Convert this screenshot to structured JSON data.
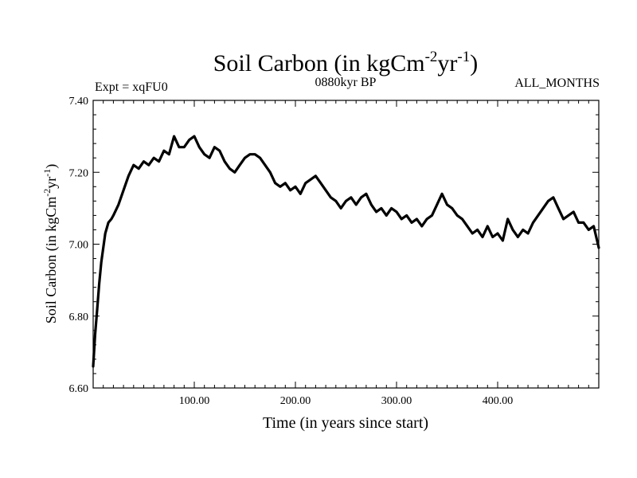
{
  "chart_data": {
    "type": "line",
    "title": {
      "main": "Soil Carbon (in kgCm",
      "sup1": "-2",
      "mid": "yr",
      "sup2": "-1",
      "end": ")"
    },
    "subtitle_left": "Expt = xqFU0",
    "subtitle_center": "0880kyr BP",
    "subtitle_right": "ALL_MONTHS",
    "xlabel": "Time (in years since start)",
    "ylabel": {
      "main": "Soil Carbon (in kgCm",
      "sup1": "-2",
      "mid": "yr",
      "sup2": "-1",
      "end": ")"
    },
    "xlim": [
      0,
      500
    ],
    "ylim": [
      6.6,
      7.4
    ],
    "x_tick_labels": [
      {
        "value": 100,
        "label": "100.00"
      },
      {
        "value": 200,
        "label": "200.00"
      },
      {
        "value": 300,
        "label": "300.00"
      },
      {
        "value": 400,
        "label": "400.00"
      }
    ],
    "y_tick_labels": [
      {
        "value": 6.6,
        "label": "6.60"
      },
      {
        "value": 6.8,
        "label": "6.80"
      },
      {
        "value": 7.0,
        "label": "7.00"
      },
      {
        "value": 7.2,
        "label": "7.20"
      },
      {
        "value": 7.4,
        "label": "7.40"
      }
    ],
    "grid": false,
    "line_color": "#000000",
    "series": [
      {
        "name": "Soil Carbon",
        "x": [
          0,
          2,
          4,
          6,
          8,
          10,
          12,
          15,
          18,
          20,
          25,
          30,
          35,
          40,
          45,
          50,
          55,
          60,
          65,
          70,
          75,
          80,
          85,
          90,
          95,
          100,
          105,
          110,
          115,
          120,
          125,
          130,
          135,
          140,
          145,
          150,
          155,
          160,
          165,
          170,
          175,
          180,
          185,
          190,
          195,
          200,
          205,
          210,
          215,
          220,
          225,
          230,
          235,
          240,
          245,
          250,
          255,
          260,
          265,
          270,
          275,
          280,
          285,
          290,
          295,
          300,
          305,
          310,
          315,
          320,
          325,
          330,
          335,
          340,
          345,
          350,
          355,
          360,
          365,
          370,
          375,
          380,
          385,
          390,
          395,
          400,
          405,
          410,
          415,
          420,
          425,
          430,
          435,
          440,
          445,
          450,
          455,
          460,
          465,
          470,
          475,
          480,
          485,
          490,
          495,
          500
        ],
        "values": [
          6.66,
          6.75,
          6.82,
          6.89,
          6.95,
          6.99,
          7.03,
          7.06,
          7.07,
          7.08,
          7.11,
          7.15,
          7.19,
          7.22,
          7.21,
          7.23,
          7.22,
          7.24,
          7.23,
          7.26,
          7.25,
          7.3,
          7.27,
          7.27,
          7.29,
          7.3,
          7.27,
          7.25,
          7.24,
          7.27,
          7.26,
          7.23,
          7.21,
          7.2,
          7.22,
          7.24,
          7.25,
          7.25,
          7.24,
          7.22,
          7.2,
          7.17,
          7.16,
          7.17,
          7.15,
          7.16,
          7.14,
          7.17,
          7.18,
          7.19,
          7.17,
          7.15,
          7.13,
          7.12,
          7.1,
          7.12,
          7.13,
          7.11,
          7.13,
          7.14,
          7.11,
          7.09,
          7.1,
          7.08,
          7.1,
          7.09,
          7.07,
          7.08,
          7.06,
          7.07,
          7.05,
          7.07,
          7.08,
          7.11,
          7.14,
          7.11,
          7.1,
          7.08,
          7.07,
          7.05,
          7.03,
          7.04,
          7.02,
          7.05,
          7.02,
          7.03,
          7.01,
          7.07,
          7.04,
          7.02,
          7.04,
          7.03,
          7.06,
          7.08,
          7.1,
          7.12,
          7.13,
          7.1,
          7.07,
          7.08,
          7.09,
          7.06,
          7.06,
          7.04,
          7.05,
          6.99
        ]
      }
    ]
  }
}
